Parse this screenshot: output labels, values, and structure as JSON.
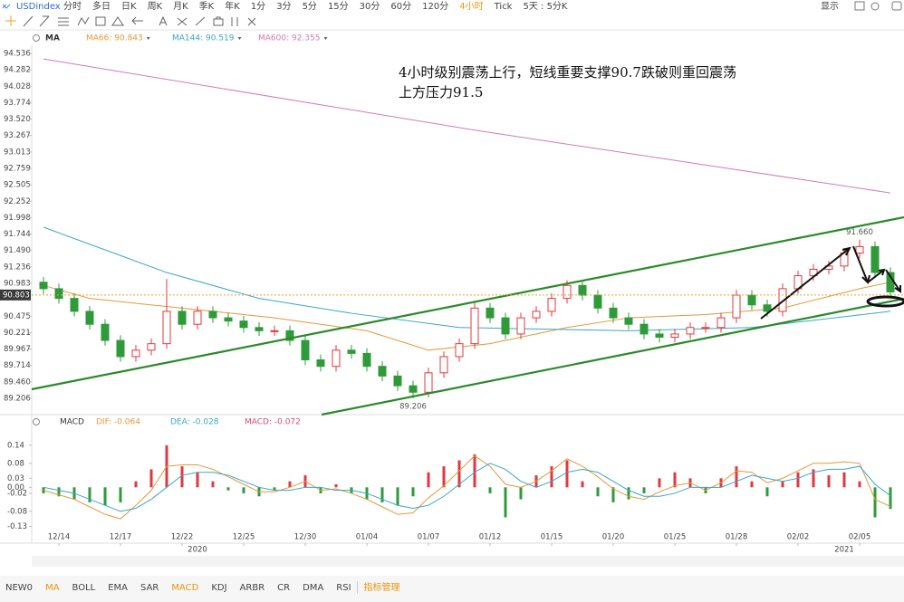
{
  "toolbar": {
    "symbol": "USDindex",
    "periods": [
      "分时",
      "多日",
      "日K",
      "周K",
      "月K",
      "季K",
      "年K",
      "1分",
      "3分",
      "5分",
      "15分",
      "30分",
      "60分",
      "120分",
      "4小时",
      "Tick",
      "5天 : 5分K"
    ],
    "active_period": 14,
    "display": "显示"
  },
  "indicator_tabs": {
    "items": [
      "NEW0",
      "MA",
      "BOLL",
      "EMA",
      "SAR",
      "MACD",
      "KDJ",
      "ARBR",
      "CR",
      "DMA",
      "RSI",
      "指标管理"
    ],
    "highlighted": [
      1,
      5,
      11
    ]
  },
  "chart_data": [
    {
      "type": "candlestick",
      "indicator": "MA",
      "note": [
        "4小时级别震荡上行，短线重要支撑90.7跌破则重回震荡",
        "上方压力91.5"
      ],
      "up_color": "#e0383e",
      "down_color": "#2f9a3a",
      "open": [
        91.0,
        90.9,
        90.75,
        90.55,
        90.35,
        90.1,
        89.85,
        89.95,
        90.05,
        90.55,
        90.35,
        90.55,
        90.45,
        90.4,
        90.3,
        90.25,
        90.25,
        90.1,
        89.8,
        89.7,
        89.95,
        89.9,
        89.7,
        89.55,
        89.4,
        89.3,
        89.6,
        89.85,
        90.05,
        90.6,
        90.45,
        90.2,
        90.45,
        90.55,
        90.75,
        90.95,
        90.8,
        90.6,
        90.45,
        90.35,
        90.2,
        90.15,
        90.2,
        90.3,
        90.3,
        90.45,
        90.8,
        90.65,
        90.55,
        90.9,
        91.1,
        91.2,
        91.25,
        91.45,
        91.55,
        91.15
      ],
      "high": [
        91.08,
        90.98,
        90.83,
        90.63,
        90.43,
        90.18,
        90.03,
        90.13,
        91.05,
        90.63,
        90.63,
        90.63,
        90.53,
        90.48,
        90.38,
        90.33,
        90.33,
        90.18,
        89.88,
        90.03,
        90.03,
        89.98,
        89.78,
        89.63,
        89.48,
        89.68,
        89.93,
        90.13,
        90.68,
        90.68,
        90.53,
        90.53,
        90.63,
        90.83,
        91.03,
        91.03,
        90.88,
        90.68,
        90.53,
        90.43,
        90.28,
        90.28,
        90.38,
        90.38,
        90.53,
        90.88,
        90.88,
        90.73,
        90.98,
        91.18,
        91.28,
        91.33,
        91.53,
        91.66,
        91.63,
        91.23
      ],
      "low": [
        90.82,
        90.67,
        90.47,
        90.27,
        90.02,
        89.77,
        89.77,
        89.87,
        89.97,
        90.27,
        90.27,
        90.37,
        90.32,
        90.22,
        90.17,
        90.17,
        90.02,
        89.72,
        89.62,
        89.62,
        89.82,
        89.62,
        89.47,
        89.32,
        89.206,
        89.22,
        89.52,
        89.77,
        89.97,
        90.37,
        90.12,
        90.12,
        90.37,
        90.47,
        90.67,
        90.72,
        90.52,
        90.37,
        90.27,
        90.12,
        90.07,
        90.07,
        90.12,
        90.22,
        90.22,
        90.37,
        90.57,
        90.47,
        90.47,
        90.82,
        91.02,
        91.12,
        91.17,
        91.37,
        91.07,
        90.77
      ],
      "close": [
        90.9,
        90.75,
        90.55,
        90.35,
        90.1,
        89.85,
        89.95,
        90.05,
        90.55,
        90.35,
        90.55,
        90.45,
        90.4,
        90.3,
        90.25,
        90.25,
        90.1,
        89.8,
        89.7,
        89.95,
        89.9,
        89.7,
        89.55,
        89.4,
        89.3,
        89.6,
        89.85,
        90.05,
        90.6,
        90.45,
        90.2,
        90.45,
        90.55,
        90.75,
        90.95,
        90.8,
        90.6,
        90.45,
        90.35,
        90.2,
        90.15,
        90.2,
        90.3,
        90.3,
        90.45,
        90.8,
        90.65,
        90.55,
        90.9,
        91.1,
        91.2,
        91.25,
        91.45,
        91.55,
        91.15,
        90.85
      ],
      "series": [
        {
          "name": "MA66: 90.843",
          "color": "#e29a3a",
          "x": [
            0,
            3,
            9,
            15,
            21,
            25,
            29,
            34,
            38,
            43,
            48,
            53,
            55
          ],
          "values": [
            90.95,
            90.75,
            90.6,
            90.45,
            90.25,
            89.95,
            90.05,
            90.3,
            90.45,
            90.5,
            90.6,
            90.9,
            91.0
          ]
        },
        {
          "name": "MA144: 90.519",
          "color": "#3aa6c8",
          "x": [
            0,
            8,
            14,
            20,
            27,
            38,
            46,
            55
          ],
          "values": [
            91.85,
            91.15,
            90.75,
            90.52,
            90.3,
            90.25,
            90.3,
            90.55
          ]
        },
        {
          "name": "MA600: 92.355",
          "color": "#d07ab8",
          "x": [
            0,
            28,
            55
          ],
          "values": [
            94.45,
            93.35,
            92.38
          ]
        }
      ],
      "annotations": [
        {
          "x": 53,
          "value": 91.66,
          "label": "91.660"
        },
        {
          "x": 24,
          "value": 89.206
        }
      ],
      "last_price": 90.803,
      "ylim": [
        88.954,
        94.662
      ],
      "yticks": [
        94.536,
        94.282,
        94.028,
        93.774,
        {
          "value": 93.52,
          "label": "93.520"
        },
        93.267,
        93.013,
        92.759,
        92.505,
        92.252,
        91.998,
        91.744,
        {
          "value": 91.49,
          "label": "91.490"
        },
        91.236,
        90.983,
        90.475,
        90.221,
        89.967,
        89.714,
        {
          "value": 89.46,
          "label": "89.460"
        },
        89.206
      ]
    },
    {
      "type": "macd",
      "indicator": "MACD",
      "categories": [
        null,
        "12/14",
        null,
        null,
        null,
        "12/17",
        null,
        null,
        null,
        "12/22",
        null,
        null,
        null,
        "12/25",
        null,
        null,
        null,
        "12/30",
        null,
        null,
        null,
        "01/04",
        null,
        null,
        null,
        "01/07",
        null,
        null,
        null,
        "01/12",
        null,
        null,
        null,
        "01/15",
        null,
        null,
        null,
        "01/20",
        null,
        null,
        null,
        "01/25",
        null,
        null,
        null,
        "01/28",
        null,
        null,
        null,
        "02/02",
        null,
        null,
        null,
        "02/05",
        null,
        null
      ],
      "years": [
        {
          "x": 10,
          "label": "2020"
        },
        {
          "x": 52,
          "label": "2021"
        }
      ],
      "series": [
        {
          "name": "DIF: -0.064",
          "color": "#e29a3a",
          "values": [
            -0.01,
            -0.025,
            -0.04,
            -0.065,
            -0.09,
            -0.105,
            -0.06,
            -0.01,
            0.07,
            0.075,
            0.075,
            0.06,
            0.035,
            0.01,
            -0.015,
            -0.015,
            0.0,
            0.02,
            -0.01,
            -0.005,
            -0.02,
            -0.04,
            -0.065,
            -0.09,
            -0.085,
            -0.035,
            0.005,
            0.055,
            0.105,
            0.07,
            0.01,
            0.0,
            0.02,
            0.055,
            0.095,
            0.07,
            0.035,
            -0.005,
            -0.03,
            -0.04,
            -0.015,
            0.005,
            0.015,
            -0.01,
            0.015,
            0.055,
            0.05,
            0.015,
            0.03,
            0.055,
            0.08,
            0.08,
            0.085,
            0.08,
            -0.04,
            -0.064
          ]
        },
        {
          "name": "DEA: -0.028",
          "color": "#3aa6c8",
          "values": [
            0.0,
            -0.01,
            -0.02,
            -0.04,
            -0.06,
            -0.08,
            -0.07,
            -0.04,
            0.0,
            0.04,
            0.05,
            0.05,
            0.04,
            0.02,
            0.0,
            -0.01,
            -0.01,
            0.0,
            0.0,
            -0.01,
            -0.01,
            -0.02,
            -0.04,
            -0.06,
            -0.07,
            -0.06,
            -0.03,
            0.01,
            0.05,
            0.08,
            0.06,
            0.02,
            0.0,
            0.02,
            0.05,
            0.06,
            0.05,
            0.02,
            -0.01,
            -0.03,
            -0.03,
            -0.02,
            0.0,
            0.0,
            0.0,
            0.02,
            0.04,
            0.03,
            0.02,
            0.03,
            0.05,
            0.06,
            0.06,
            0.07,
            0.01,
            -0.028
          ]
        },
        {
          "name": "MACD: -0.072",
          "color": "#d0507a",
          "type": "histogram",
          "up_color": "#e0383e",
          "down_color": "#2f9a3a",
          "values": [
            -0.02,
            -0.03,
            -0.04,
            -0.05,
            -0.06,
            -0.05,
            0.02,
            0.06,
            0.14,
            0.07,
            0.05,
            0.02,
            -0.01,
            -0.02,
            -0.03,
            -0.01,
            0.02,
            0.04,
            -0.02,
            0.01,
            -0.02,
            -0.04,
            -0.05,
            -0.06,
            -0.03,
            0.05,
            0.07,
            0.09,
            0.11,
            -0.02,
            -0.1,
            -0.04,
            0.04,
            0.07,
            0.09,
            0.02,
            -0.03,
            -0.05,
            -0.04,
            -0.02,
            0.03,
            0.05,
            0.03,
            -0.02,
            0.03,
            0.07,
            0.02,
            -0.03,
            0.02,
            0.05,
            0.06,
            0.04,
            0.05,
            0.02,
            -0.1,
            -0.072
          ]
        }
      ],
      "ylim": [
        -0.18,
        0.2
      ],
      "yticks": [
        0.14,
        0.08,
        0.03,
        {
          "value": 0,
          "label": "0.00"
        },
        -0.02,
        -0.08,
        -0.13
      ]
    }
  ]
}
